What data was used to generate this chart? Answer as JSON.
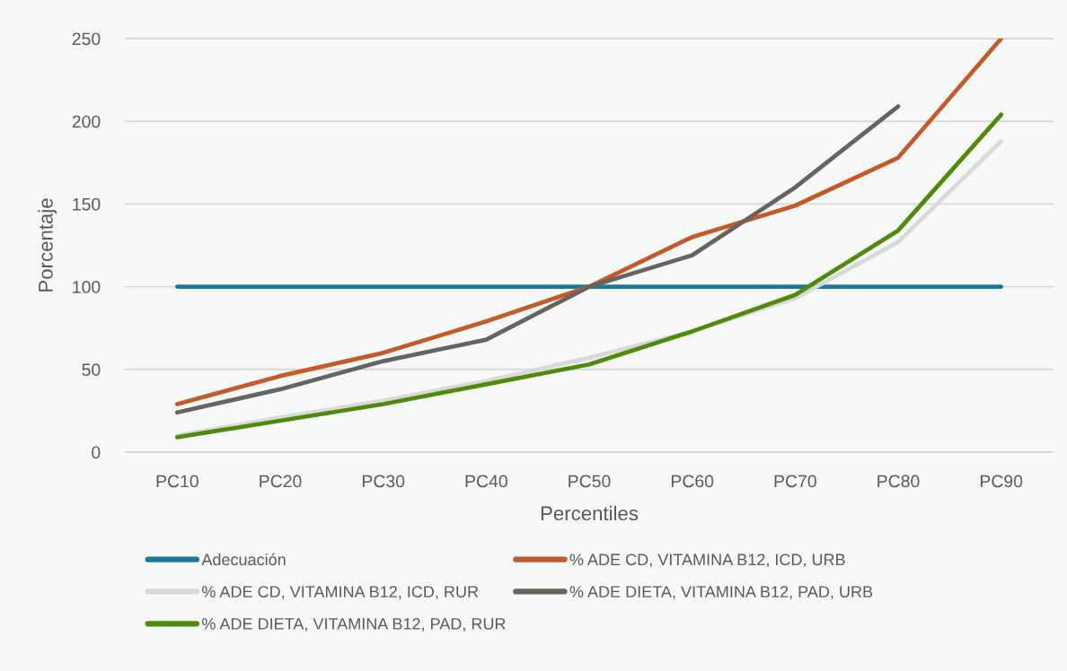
{
  "chart_data": {
    "type": "line",
    "xlabel": "Percentiles",
    "ylabel": "Porcentaje",
    "categories": [
      "PC10",
      "PC20",
      "PC30",
      "PC40",
      "PC50",
      "PC60",
      "PC70",
      "PC80",
      "PC90"
    ],
    "ylim": [
      0,
      250
    ],
    "yticks": [
      0,
      50,
      100,
      150,
      200,
      250
    ],
    "grid": "y",
    "legend": "bottom",
    "series": [
      {
        "name": "Adecuación",
        "color": "#1f7899",
        "values": [
          100,
          100,
          100,
          100,
          100,
          100,
          100,
          100,
          100
        ]
      },
      {
        "name": "% ADE CD, VITAMINA B12, ICD, URB",
        "color": "#c55a28",
        "values": [
          29,
          46,
          60,
          79,
          100,
          130,
          149,
          178,
          250
        ]
      },
      {
        "name": "% ADE CD, VITAMINA B12, ICD, RUR",
        "color": "#d9d9d9",
        "values": [
          10,
          21,
          31,
          43,
          57,
          73,
          93,
          127,
          188
        ]
      },
      {
        "name": "% ADE DIETA, VITAMINA B12, PAD, URB",
        "color": "#67635e",
        "values": [
          24,
          38,
          55,
          68,
          100,
          119,
          160,
          209,
          null
        ]
      },
      {
        "name": "% ADE DIETA, VITAMINA B12, PAD, RUR",
        "color": "#4f8a0b",
        "values": [
          9,
          19,
          29,
          41,
          53,
          73,
          95,
          134,
          204
        ]
      }
    ]
  }
}
